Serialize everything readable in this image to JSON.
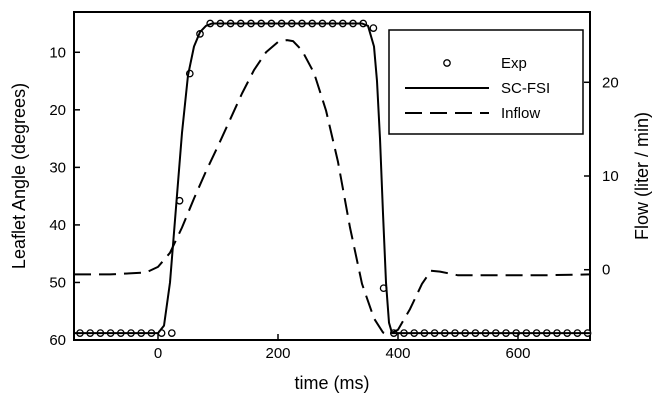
{
  "chart_data": {
    "type": "line",
    "xlabel": "time (ms)",
    "ylabel_left": "Leaflet Angle (degrees)",
    "ylabel_right": "Flow (liter / min)",
    "xlim": [
      -140,
      720
    ],
    "ylim_left": [
      60,
      3
    ],
    "ylim_right": [
      -7.5,
      27.5
    ],
    "xticks": [
      0,
      200,
      400,
      600
    ],
    "xtick_labels": [
      "0",
      "200",
      "400",
      "600"
    ],
    "yticks_left": [
      10,
      20,
      30,
      40,
      50,
      60
    ],
    "ytick_labels_left": [
      "10",
      "20",
      "30",
      "40",
      "50",
      "60"
    ],
    "yticks_right": [
      0,
      10,
      20
    ],
    "ytick_labels_right": [
      "0",
      "10",
      "20"
    ],
    "grid": false,
    "legend_position": "top-right",
    "legend": [
      "Exp",
      "SC-FSI",
      "Inflow"
    ],
    "series": [
      {
        "name": "Exp",
        "axis": "left",
        "style": "circles",
        "x": [
          -130,
          -113,
          -96,
          -79,
          -62,
          -45,
          -28,
          -11,
          6,
          23,
          36,
          53,
          70,
          87,
          104,
          121,
          138,
          155,
          172,
          189,
          206,
          223,
          240,
          257,
          274,
          291,
          308,
          325,
          342,
          359,
          376,
          393,
          410,
          427,
          444,
          461,
          478,
          495,
          512,
          529,
          546,
          563,
          580,
          597,
          614,
          631,
          648,
          665,
          682,
          699,
          716
        ],
        "y": [
          58.8,
          58.8,
          58.8,
          58.8,
          58.8,
          58.8,
          58.8,
          58.8,
          58.8,
          58.8,
          35.8,
          13.7,
          6.8,
          5.0,
          5.0,
          5.0,
          5.0,
          5.0,
          5.0,
          5.0,
          5.0,
          5.0,
          5.0,
          5.0,
          5.0,
          5.0,
          5.0,
          5.0,
          5.0,
          5.8,
          51.0,
          58.8,
          58.8,
          58.8,
          58.8,
          58.8,
          58.8,
          58.8,
          58.8,
          58.8,
          58.8,
          58.8,
          58.8,
          58.8,
          58.8,
          58.8,
          58.8,
          58.8,
          58.8,
          58.8,
          58.8
        ]
      },
      {
        "name": "SC-FSI",
        "axis": "left",
        "style": "solid",
        "x": [
          -140,
          0,
          10,
          20,
          30,
          40,
          50,
          60,
          70,
          80,
          90,
          100,
          340,
          350,
          360,
          365,
          370,
          375,
          380,
          385,
          390,
          400,
          720
        ],
        "y": [
          58.8,
          58.8,
          57.5,
          50.0,
          37.0,
          24.0,
          14.0,
          9.0,
          6.5,
          5.4,
          5.0,
          5.0,
          5.0,
          5.4,
          9.0,
          15.0,
          25.0,
          38.0,
          50.0,
          57.0,
          58.8,
          58.8,
          58.8
        ]
      },
      {
        "name": "Inflow",
        "axis": "right",
        "style": "dashed",
        "x": [
          -140,
          -80,
          -20,
          0,
          20,
          40,
          60,
          80,
          100,
          120,
          140,
          160,
          180,
          200,
          215,
          225,
          240,
          260,
          280,
          300,
          320,
          340,
          360,
          375,
          385,
          400,
          420,
          440,
          455,
          470,
          500,
          560,
          640,
          720
        ],
        "y": [
          -0.5,
          -0.5,
          -0.3,
          0.3,
          1.8,
          4.5,
          7.6,
          10.5,
          13.2,
          16.0,
          18.8,
          21.3,
          23.2,
          24.3,
          24.5,
          24.4,
          23.4,
          21.0,
          17.0,
          11.5,
          4.5,
          -1.5,
          -5.2,
          -6.7,
          -6.9,
          -6.4,
          -4.2,
          -1.5,
          -0.1,
          -0.2,
          -0.6,
          -0.6,
          -0.6,
          -0.5
        ]
      }
    ]
  }
}
